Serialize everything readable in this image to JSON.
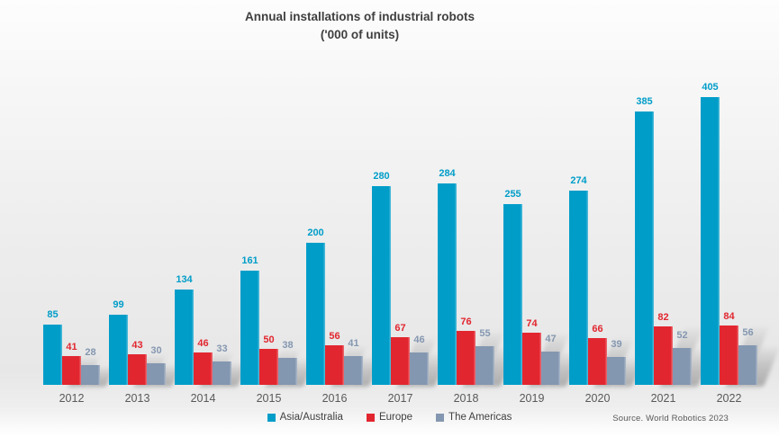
{
  "title": {
    "line1": "Annual installations of industrial robots",
    "line2": "('000 of units)"
  },
  "source": "Source. World Robotics 2023",
  "palette": {
    "asia_australia": "#009DC9",
    "europe": "#E2262F",
    "the_americas": "#8497B0",
    "title_text": "#3F3F3F",
    "axis_text": "#595959"
  },
  "chart_data": {
    "type": "bar",
    "title": "Annual installations of industrial robots ('000 of units)",
    "xlabel": "",
    "ylabel": "",
    "categories": [
      "2012",
      "2013",
      "2014",
      "2015",
      "2016",
      "2017",
      "2018",
      "2019",
      "2020",
      "2021",
      "2022"
    ],
    "series": [
      {
        "name": "Asia/Australia",
        "color": "#009DC9",
        "values": [
          85,
          99,
          134,
          161,
          200,
          280,
          284,
          255,
          274,
          385,
          405
        ]
      },
      {
        "name": "Europe",
        "color": "#E2262F",
        "values": [
          41,
          43,
          46,
          50,
          56,
          67,
          76,
          74,
          66,
          82,
          84
        ]
      },
      {
        "name": "The Americas",
        "color": "#8497B0",
        "values": [
          28,
          30,
          33,
          38,
          41,
          46,
          55,
          47,
          39,
          52,
          56
        ]
      }
    ],
    "data_labels": true,
    "grid": false,
    "axis_lines": false,
    "legend_position": "bottom",
    "ylim": [
      0,
      410
    ]
  }
}
